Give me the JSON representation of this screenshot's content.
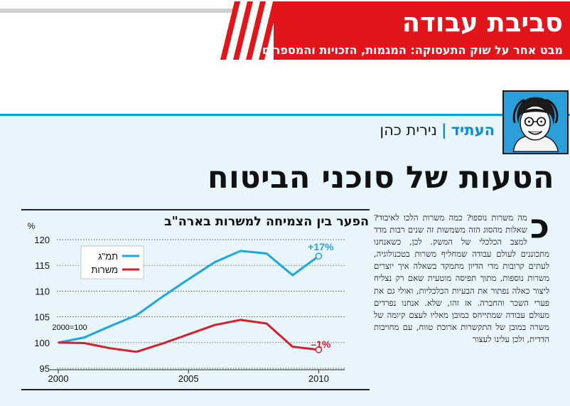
{
  "section": {
    "title": "סביבת עבודה",
    "subtitle": "מבט אחר על שוק התעסוקה: המגמות, הזכויות והמספרים"
  },
  "byline": {
    "column": "העתיד",
    "separator": "|",
    "author": "נירית כהן"
  },
  "headline": "הטעות של סוכני הביטוח",
  "article": {
    "dropcap": "כ",
    "text": "מה משרות נוספו? כמה משרות הלכו לאיבוד? שאלות מהסוג הזה משמשות זה שנים רבות מדד למצב הכלכלי של המשק. לכן, כשאנחנו מתכוננים לעולם עבודה שמחליף משרות בטכנולוגיה, לעתים קרובות מדי הדיון מתמקד בשאלה איך יוצרים משרות נוספות, מתוך תפיסה מוטעית שאם רק נצליח ליצור כאלה נפתור את הבעיות הכלכליות, ואולי גם את פערי השכר והחברה. אז זהו, שלא. אנחנו נפרדים מעולם עבודה שמתייחס כמובן מאליו לעצם קיומה של משרה במובן של התקשרות ארוכת טווח, עם מחויבות הדדית, ולכן עלינו לעצור"
  },
  "chart_data": {
    "type": "line",
    "title": "הפער בין הצמיחה למשרות בארה\"ב",
    "ylabel": "%",
    "xlabel": "",
    "ylim": [
      95,
      120
    ],
    "xlim": [
      2000,
      2011
    ],
    "yticks": [
      "120",
      "115",
      "110",
      "105",
      "100",
      "95"
    ],
    "xticks": [
      "2000",
      "2005",
      "2010"
    ],
    "base_label": "2000=100",
    "legend_position": "top-left",
    "series": [
      {
        "name": "תמ\"ג",
        "color": "#1ea6df",
        "end_label": "+17%",
        "x": [
          2000,
          2001,
          2002,
          2003,
          2004,
          2005,
          2006,
          2007,
          2008,
          2009,
          2010
        ],
        "y": [
          100,
          101,
          103.2,
          105.3,
          108.9,
          112.3,
          115.6,
          117.8,
          117.3,
          113.1,
          116.8
        ]
      },
      {
        "name": "משרות",
        "color": "#d3202a",
        "end_label": "–1%",
        "x": [
          2000,
          2001,
          2002,
          2003,
          2004,
          2005,
          2006,
          2007,
          2008,
          2009,
          2010
        ],
        "y": [
          100,
          99.9,
          98.9,
          98.2,
          99.8,
          101.6,
          103.4,
          104.4,
          103.7,
          99.2,
          98.6
        ]
      }
    ]
  }
}
